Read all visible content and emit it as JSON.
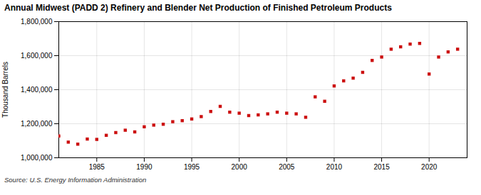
{
  "chart_data": {
    "type": "scatter",
    "title": "Annual Midwest (PADD 2) Refinery and Blender Net Production of Finished Petroleum Products",
    "ylabel": "Thousand Barrels",
    "source": "Source: U.S. Energy Information Administration",
    "color": "#cc1111",
    "marker": "square",
    "x": [
      1981,
      1982,
      1983,
      1984,
      1985,
      1986,
      1987,
      1988,
      1989,
      1990,
      1991,
      1992,
      1993,
      1994,
      1995,
      1996,
      1997,
      1998,
      1999,
      2000,
      2001,
      2002,
      2003,
      2004,
      2005,
      2006,
      2007,
      2008,
      2009,
      2010,
      2011,
      2012,
      2013,
      2014,
      2015,
      2016,
      2017,
      2018,
      2019,
      2020,
      2021,
      2022,
      2023
    ],
    "values": [
      1128000,
      1092000,
      1080000,
      1110000,
      1108000,
      1132000,
      1148000,
      1162000,
      1152000,
      1182000,
      1192000,
      1197000,
      1212000,
      1218000,
      1228000,
      1242000,
      1272000,
      1302000,
      1268000,
      1262000,
      1248000,
      1252000,
      1258000,
      1268000,
      1262000,
      1258000,
      1238000,
      1358000,
      1332000,
      1422000,
      1452000,
      1468000,
      1502000,
      1572000,
      1592000,
      1638000,
      1652000,
      1668000,
      1672000,
      1492000,
      1592000,
      1622000,
      1638000
    ],
    "xlim": [
      1981,
      2024
    ],
    "xticks": [
      1985,
      1990,
      1995,
      2000,
      2005,
      2010,
      2015,
      2020
    ],
    "ylim": [
      1000000,
      1800000
    ],
    "yticks": [
      {
        "value": 1000000,
        "label": "1,000,000"
      },
      {
        "value": 1200000,
        "label": "1,200,000"
      },
      {
        "value": 1400000,
        "label": "1,400,000"
      },
      {
        "value": 1600000,
        "label": "1,600,000"
      },
      {
        "value": 1800000,
        "label": "1,800,000"
      }
    ],
    "grid": true
  }
}
